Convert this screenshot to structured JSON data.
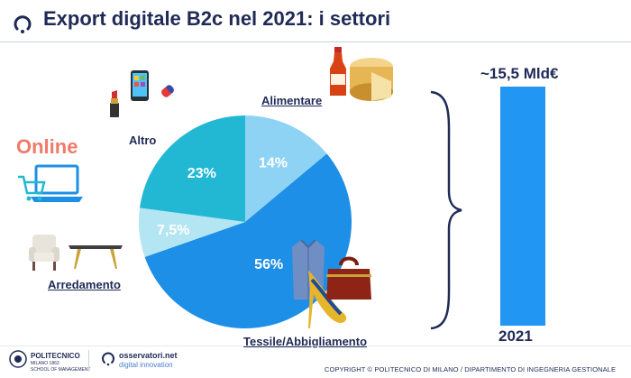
{
  "header": {
    "title": "Export digitale B2c nel 2021: i settori"
  },
  "online_label": "Online",
  "chart_data": {
    "type": "pie",
    "title": "Export digitale B2c nel 2021: i settori",
    "slices": [
      {
        "label": "Alimentare",
        "value": 14,
        "display": "14%",
        "color": "#8fd3f4"
      },
      {
        "label": "Tessile/Abbigliamento",
        "value": 56,
        "display": "56%",
        "color": "#1e8fe6"
      },
      {
        "label": "Arredamento",
        "value": 7.5,
        "display": "7,5%",
        "color": "#b4e5f3"
      },
      {
        "label": "Altro",
        "value": 23,
        "display": "23%",
        "color": "#22b8d3"
      }
    ],
    "total": {
      "label": "~15,5 Mld€",
      "year": "2021",
      "color": "#2196f3"
    }
  },
  "colors": {
    "title": "#1f2a56",
    "online": "#f07a6a",
    "bar": "#2196f3"
  },
  "footer": {
    "polimi_name": "POLITECNICO",
    "polimi_sub": "MILANO 1863",
    "polimi_school": "SCHOOL OF MANAGEMENT",
    "osservatori_name": "osservatori.net",
    "osservatori_sub": "digital innovation",
    "copyright": "COPYRIGHT © POLITECNICO DI MILANO / DIPARTIMENTO DI INGEGNERIA GESTIONALE"
  },
  "icons": [
    "header-logo-icon",
    "lipstick-icon",
    "smartphone-icon",
    "pill-icon",
    "tomato-sauce-icon",
    "cheese-icon",
    "laptop-cart-icon",
    "armchair-icon",
    "table-icon",
    "shirt-icon",
    "shoe-icon",
    "bag-icon",
    "brace-icon",
    "polimi-logo-icon",
    "osservatori-logo-icon"
  ]
}
